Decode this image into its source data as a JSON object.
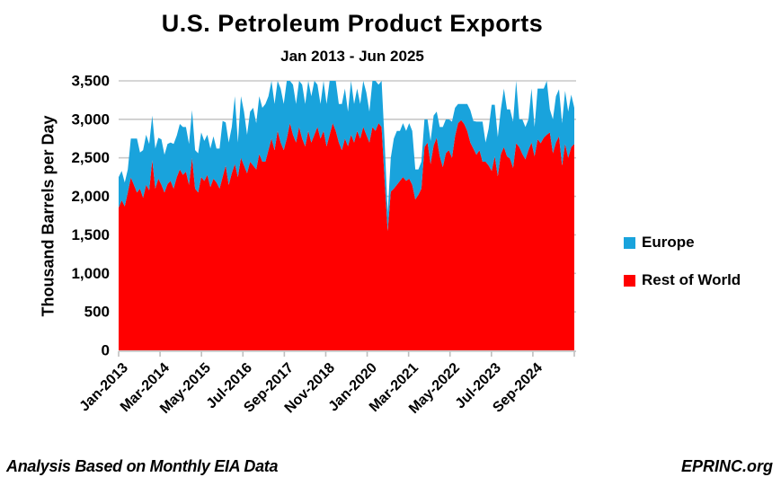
{
  "title": "U.S. Petroleum Product Exports",
  "subtitle": "Jan 2013 - Jun 2025",
  "footer": {
    "left": "Analysis Based on Monthly EIA Data",
    "right": "EPRINC.org"
  },
  "colors": {
    "europe": "#19A3DC",
    "rest_of_world": "#FF0000",
    "gridline": "#C8C8C8",
    "axis": "#BFBFBF",
    "text": "#000000"
  },
  "legend": {
    "position": "right",
    "items": [
      {
        "label": "Europe",
        "color": "#19A3DC"
      },
      {
        "label": "Rest of World",
        "color": "#FF0000"
      }
    ]
  },
  "chart_data": {
    "type": "area",
    "stacked": true,
    "title": "U.S. Petroleum Product Exports",
    "subtitle": "Jan 2013 - Jun 2025",
    "xlabel": "",
    "ylabel": "Thousand Barrels per Day",
    "ylim": [
      0,
      3500
    ],
    "ytick_step": 500,
    "y_tick_labels": [
      "0",
      "500",
      "1,000",
      "1,500",
      "2,000",
      "2,500",
      "3,000",
      "3,500"
    ],
    "grid": "horizontal",
    "x_interval": "monthly",
    "x_range": [
      "Jan-2013",
      "Jun-2025"
    ],
    "n_points": 150,
    "x_tick_labels": [
      "Jan-2013",
      "Mar-2014",
      "May-2015",
      "Jul-2016",
      "Sep-2017",
      "Nov-2018",
      "Jan-2020",
      "Mar-2021",
      "May-2022",
      "Jul-2023",
      "Sep-2024"
    ],
    "series": [
      {
        "name": "Rest of World",
        "color": "#FF0000",
        "values": [
          1850,
          1950,
          1870,
          2050,
          2245,
          2150,
          2050,
          2100,
          1980,
          2150,
          2080,
          2470,
          2100,
          2230,
          2150,
          2050,
          2160,
          2200,
          2100,
          2250,
          2350,
          2280,
          2320,
          2150,
          2500,
          2100,
          2050,
          2250,
          2200,
          2280,
          2120,
          2230,
          2180,
          2100,
          2250,
          2400,
          2150,
          2300,
          2420,
          2250,
          2500,
          2400,
          2300,
          2450,
          2400,
          2350,
          2550,
          2450,
          2450,
          2600,
          2750,
          2600,
          2850,
          2700,
          2600,
          2750,
          2950,
          2800,
          2700,
          2900,
          2750,
          2650,
          2850,
          2700,
          2800,
          2900,
          2750,
          2850,
          2650,
          2800,
          2950,
          2850,
          2700,
          2600,
          2750,
          2650,
          2800,
          2700,
          2850,
          2750,
          2900,
          2800,
          2700,
          2900,
          2850,
          2950,
          2900,
          2200,
          1550,
          2060,
          2100,
          2150,
          2200,
          2250,
          2200,
          2230,
          2150,
          1960,
          2020,
          2100,
          2640,
          2700,
          2420,
          2660,
          2760,
          2520,
          2380,
          2560,
          2600,
          2500,
          2780,
          2950,
          2990,
          2940,
          2850,
          2700,
          2620,
          2540,
          2600,
          2450,
          2450,
          2400,
          2330,
          2520,
          2260,
          2550,
          2640,
          2520,
          2490,
          2370,
          2690,
          2640,
          2550,
          2480,
          2600,
          2700,
          2520,
          2740,
          2690,
          2760,
          2800,
          2830,
          2560,
          2700,
          2780,
          2400,
          2680,
          2500,
          2640,
          2680
        ]
      },
      {
        "name": "Europe",
        "color": "#19A3DC",
        "values": [
          400,
          380,
          310,
          300,
          505,
          600,
          700,
          470,
          620,
          650,
          600,
          580,
          520,
          530,
          590,
          490,
          520,
          500,
          580,
          540,
          590,
          620,
          580,
          530,
          620,
          500,
          510,
          580,
          520,
          520,
          500,
          550,
          440,
          520,
          730,
          560,
          550,
          600,
          880,
          450,
          800,
          700,
          500,
          650,
          750,
          600,
          750,
          700,
          750,
          700,
          750,
          600,
          650,
          700,
          600,
          750,
          550,
          650,
          500,
          600,
          700,
          550,
          650,
          600,
          700,
          550,
          450,
          650,
          550,
          700,
          550,
          650,
          500,
          600,
          650,
          450,
          700,
          500,
          550,
          450,
          600,
          550,
          400,
          600,
          650,
          500,
          600,
          500,
          240,
          440,
          650,
          700,
          650,
          700,
          650,
          720,
          700,
          390,
          330,
          350,
          360,
          300,
          300,
          390,
          340,
          380,
          520,
          440,
          400,
          470,
          370,
          250,
          210,
          260,
          350,
          420,
          360,
          430,
          370,
          520,
          250,
          480,
          860,
          670,
          510,
          580,
          760,
          610,
          640,
          600,
          810,
          360,
          450,
          420,
          400,
          700,
          380,
          660,
          710,
          640,
          700,
          300,
          440,
          600,
          610,
          550,
          690,
          600,
          680,
          470
        ]
      }
    ]
  }
}
